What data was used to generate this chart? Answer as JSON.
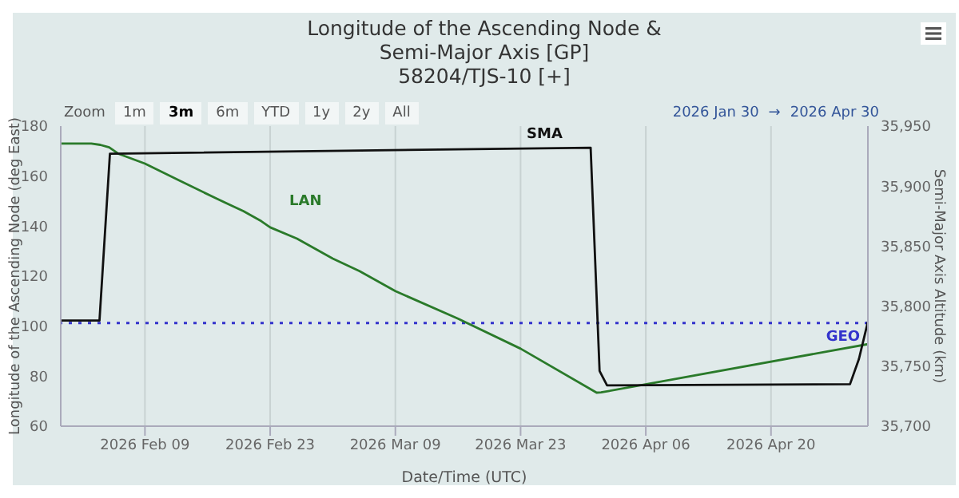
{
  "chart_data": {
    "type": "line",
    "title": "Longitude of the Ascending Node & Semi-Major Axis [GP]",
    "subtitle": "58204/TJS-10 [+]",
    "xlabel": "Date/Time (UTC)",
    "ylabel": "Longitude of the Ascending Node (deg East)",
    "y2label": "Semi-Major Axis Altitude (km)",
    "annotations": [
      "Zoom",
      "1m",
      "3m",
      "6m",
      "YTD",
      "1y",
      "2y",
      "All",
      "2026 Jan 30",
      "→",
      "2026 Apr 30"
    ],
    "series": [
      {
        "name": "LAN",
        "color": "#2a7a2a",
        "x": [
          "2026-01-30T14:00",
          "2026-02-03",
          "2026-02-04",
          "2026-02-05",
          "2026-02-06",
          "2026-02-09",
          "2026-02-13",
          "2026-02-17",
          "2026-02-20",
          "2026-02-22",
          "2026-02-23",
          "2026-02-26",
          "2026-02-28",
          "2026-03-02",
          "2026-03-05",
          "2026-03-09",
          "2026-03-16",
          "2026-03-23",
          "2026-03-31T12:00",
          "2026-04-01",
          "2026-04-30T20:00"
        ],
        "values": [
          173,
          173,
          172.5,
          171.5,
          169,
          165,
          158,
          151,
          146,
          142,
          139.5,
          135,
          131,
          127,
          122,
          114,
          103,
          91,
          73.4,
          73.5,
          92.8
        ]
      },
      {
        "name": "SMA",
        "color": "#111111",
        "axis": "y2",
        "x": [
          "2026-01-30T14:00",
          "2026-02-03T22:00",
          "2026-02-05T02:00",
          "2026-03-30T20:00",
          "2026-03-31T20:00",
          "2026-04-01T16:00",
          "2026-04-28T20:00",
          "2026-04-29T20:00",
          "2026-04-30T20:00"
        ],
        "values": [
          35788,
          35788,
          35927,
          35932,
          35746,
          35734,
          35735,
          35756,
          35787
        ]
      }
    ],
    "xlim": [
      "2026-01-30T14:00",
      "2026-04-30T20:00"
    ],
    "xticks": [
      {
        "value": "2026-02-09",
        "label": "2026 Feb 09"
      },
      {
        "value": "2026-02-23",
        "label": "2026 Feb 23"
      },
      {
        "value": "2026-03-09",
        "label": "2026 Mar 09"
      },
      {
        "value": "2026-03-23",
        "label": "2026 Mar 23"
      },
      {
        "value": "2026-04-06",
        "label": "2026 Apr 06"
      },
      {
        "value": "2026-04-20",
        "label": "2026 Apr 20"
      }
    ],
    "ylim": [
      60,
      180
    ],
    "yticks": [
      60,
      80,
      100,
      120,
      140,
      160,
      180
    ],
    "y2lim": [
      35700,
      35950
    ],
    "y2ticks": [
      {
        "value": 35700,
        "label": "35,700"
      },
      {
        "value": 35750,
        "label": "35,750"
      },
      {
        "value": 35800,
        "label": "35,800"
      },
      {
        "value": 35850,
        "label": "35,850"
      },
      {
        "value": 35900,
        "label": "35,900"
      },
      {
        "value": 35950,
        "label": "35,950"
      }
    ],
    "ref_lines": [
      {
        "axis": "y2",
        "value": 35786,
        "label": "GEO",
        "color": "#3333cc",
        "line_style": "dotted"
      }
    ],
    "grid": "x",
    "legend": false,
    "marker": "none",
    "line_style": "solid"
  }
}
